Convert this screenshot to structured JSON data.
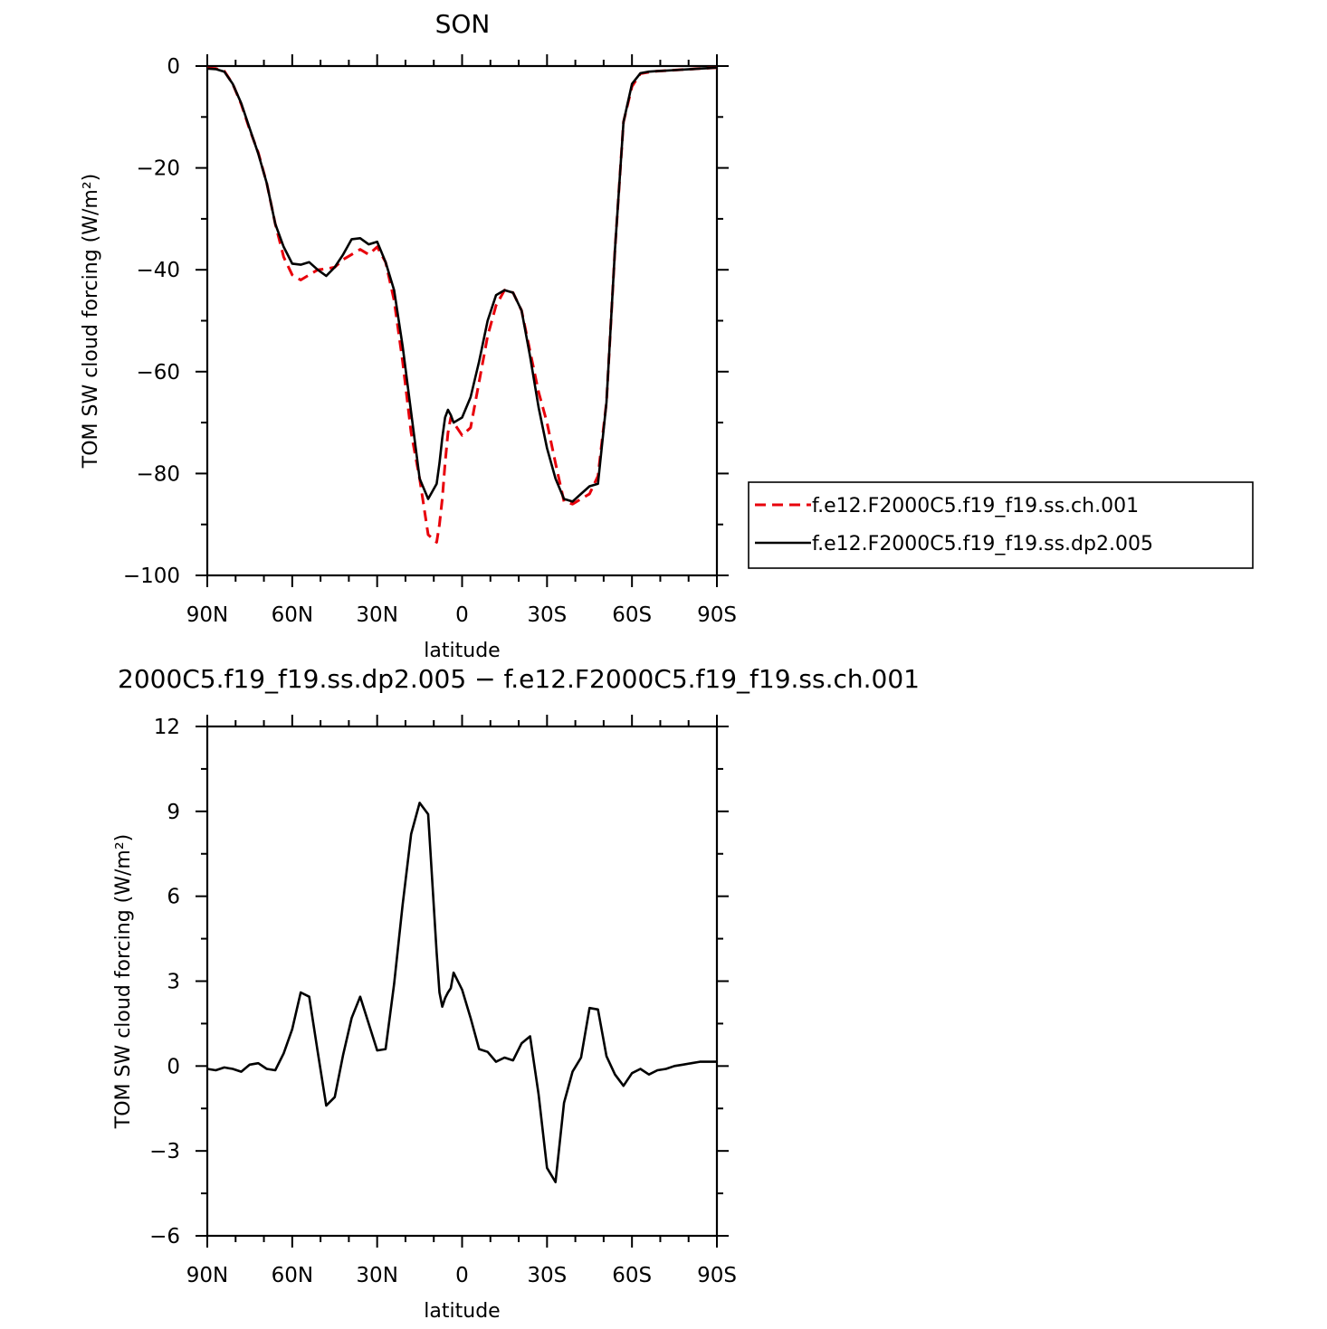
{
  "chart_data": [
    {
      "type": "line",
      "title": "SON",
      "xlabel": "latitude",
      "ylabel": "TOM SW cloud forcing (W/m²)",
      "x_tick_labels": [
        "90N",
        "60N",
        "30N",
        "0",
        "30S",
        "60S",
        "90S"
      ],
      "x_ticks": [
        90,
        60,
        30,
        0,
        -30,
        -60,
        -90
      ],
      "xlim": [
        90,
        -90
      ],
      "ylim": [
        -100,
        0
      ],
      "y_ticks": [
        0,
        -20,
        -40,
        -60,
        -80,
        -100
      ],
      "y_tick_labels": [
        "0",
        "−20",
        "−40",
        "−60",
        "−80",
        "−100"
      ],
      "grid": false,
      "legend_position": "right-center",
      "series": [
        {
          "name": "f.e12.F2000C5.f19_f19.ss.ch.001",
          "color": "#e8000b",
          "dash": "dashed",
          "x": [
            90,
            87,
            84,
            81,
            78,
            75,
            72,
            69,
            66,
            63,
            60,
            57,
            54,
            51,
            48,
            45,
            42,
            39,
            36,
            33,
            30,
            27,
            24,
            21,
            18,
            15,
            12,
            9,
            8,
            7,
            6,
            5,
            4,
            3,
            0,
            -3,
            -6,
            -9,
            -12,
            -15,
            -18,
            -21,
            -24,
            -27,
            -30,
            -33,
            -36,
            -39,
            -42,
            -45,
            -48,
            -51,
            -54,
            -57,
            -60,
            -63,
            -66,
            -69,
            -72,
            -75,
            -78,
            -81,
            -84,
            -87,
            -90
          ],
          "y": [
            -0.4,
            -0.5,
            -1.0,
            -3.5,
            -7.5,
            -12.5,
            -17.0,
            -23.0,
            -31.0,
            -37.5,
            -41.0,
            -42.0,
            -41.0,
            -40.0,
            -39.8,
            -39.5,
            -38.0,
            -37.0,
            -36.0,
            -37.0,
            -35.5,
            -38.5,
            -46.0,
            -58.0,
            -72.0,
            -81.0,
            -92.0,
            -93.5,
            -90.0,
            -85.0,
            -78.0,
            -72.0,
            -69.0,
            -70.0,
            -72.5,
            -71.0,
            -62.0,
            -53.0,
            -47.0,
            -44.0,
            -44.5,
            -48.0,
            -56.0,
            -64.0,
            -70.0,
            -78.0,
            -85.5,
            -86.0,
            -85.0,
            -84.0,
            -80.5,
            -66.0,
            -36.0,
            -11.0,
            -4.0,
            -1.5,
            -1.2,
            -1.0,
            -0.9,
            -0.8,
            -0.7,
            -0.6,
            -0.5,
            -0.4,
            -0.3
          ]
        },
        {
          "name": "f.e12.F2000C5.f19_f19.ss.dp2.005",
          "color": "#000000",
          "dash": "solid",
          "x": [
            90,
            87,
            84,
            81,
            78,
            75,
            72,
            69,
            66,
            63,
            60,
            57,
            54,
            51,
            48,
            45,
            42,
            39,
            36,
            33,
            30,
            27,
            24,
            21,
            18,
            15,
            12,
            9,
            8,
            7,
            6,
            5,
            4,
            3,
            0,
            -3,
            -6,
            -9,
            -12,
            -15,
            -18,
            -21,
            -24,
            -27,
            -30,
            -33,
            -36,
            -39,
            -42,
            -45,
            -48,
            -51,
            -54,
            -57,
            -60,
            -63,
            -66,
            -69,
            -72,
            -75,
            -78,
            -81,
            -84,
            -87,
            -90
          ],
          "y": [
            -0.5,
            -0.6,
            -1.1,
            -3.5,
            -7.3,
            -12.3,
            -17.2,
            -23.0,
            -31.0,
            -35.5,
            -38.8,
            -39.0,
            -38.5,
            -40.0,
            -41.2,
            -39.5,
            -37.0,
            -34.0,
            -33.8,
            -35.0,
            -34.5,
            -38.5,
            -44.0,
            -55.0,
            -68.0,
            -81.0,
            -85.0,
            -82.0,
            -78.0,
            -73.0,
            -69.0,
            -67.5,
            -68.5,
            -70.0,
            -69.0,
            -65.0,
            -58.0,
            -50.0,
            -45.0,
            -44.0,
            -44.5,
            -48.0,
            -57.0,
            -67.0,
            -75.0,
            -81.0,
            -85.0,
            -85.5,
            -84.0,
            -82.5,
            -82.0,
            -66.0,
            -36.0,
            -11.0,
            -3.5,
            -1.4,
            -1.1,
            -1.0,
            -0.9,
            -0.8,
            -0.7,
            -0.6,
            -0.5,
            -0.4,
            -0.3
          ]
        }
      ]
    },
    {
      "type": "line",
      "title": "2000C5.f19_f19.ss.dp2.005 − f.e12.F2000C5.f19_f19.ss.ch.001",
      "xlabel": "latitude",
      "ylabel": "TOM SW cloud forcing (W/m²)",
      "x_tick_labels": [
        "90N",
        "60N",
        "30N",
        "0",
        "30S",
        "60S",
        "90S"
      ],
      "x_ticks": [
        90,
        60,
        30,
        0,
        -30,
        -60,
        -90
      ],
      "xlim": [
        90,
        -90
      ],
      "ylim": [
        -6,
        12
      ],
      "y_ticks": [
        12,
        9,
        6,
        3,
        0,
        -3,
        -6
      ],
      "y_tick_labels": [
        "12",
        "9",
        "6",
        "3",
        "0",
        "−3",
        "−6"
      ],
      "grid": false,
      "series": [
        {
          "color": "#000000",
          "dash": "solid",
          "x": [
            90,
            87,
            84,
            81,
            78,
            75,
            72,
            69,
            66,
            63,
            60,
            57,
            54,
            51,
            48,
            45,
            42,
            39,
            36,
            33,
            30,
            27,
            24,
            21,
            18,
            15,
            12,
            9,
            8,
            7,
            6,
            5,
            4,
            3,
            0,
            -3,
            -6,
            -9,
            -12,
            -15,
            -18,
            -21,
            -24,
            -27,
            -30,
            -33,
            -36,
            -39,
            -42,
            -45,
            -48,
            -51,
            -54,
            -57,
            -60,
            -63,
            -66,
            -69,
            -72,
            -75,
            -78,
            -81,
            -84,
            -87,
            -90
          ],
          "y": [
            -0.1,
            -0.15,
            -0.05,
            -0.1,
            -0.2,
            0.05,
            0.1,
            -0.1,
            -0.15,
            0.45,
            1.3,
            2.6,
            2.45,
            0.5,
            -1.4,
            -1.1,
            0.4,
            1.7,
            2.45,
            1.5,
            0.55,
            0.6,
            2.9,
            5.7,
            8.2,
            9.3,
            8.9,
            4.0,
            2.6,
            2.1,
            2.4,
            2.6,
            2.75,
            3.3,
            2.7,
            1.7,
            0.6,
            0.5,
            0.15,
            0.3,
            0.2,
            0.8,
            1.05,
            -1.0,
            -3.6,
            -4.1,
            -1.3,
            -0.2,
            0.3,
            2.05,
            2.0,
            0.35,
            -0.3,
            -0.7,
            -0.25,
            -0.1,
            -0.3,
            -0.15,
            -0.1,
            0.0,
            0.05,
            0.1,
            0.15,
            0.15,
            0.15
          ]
        }
      ]
    }
  ]
}
